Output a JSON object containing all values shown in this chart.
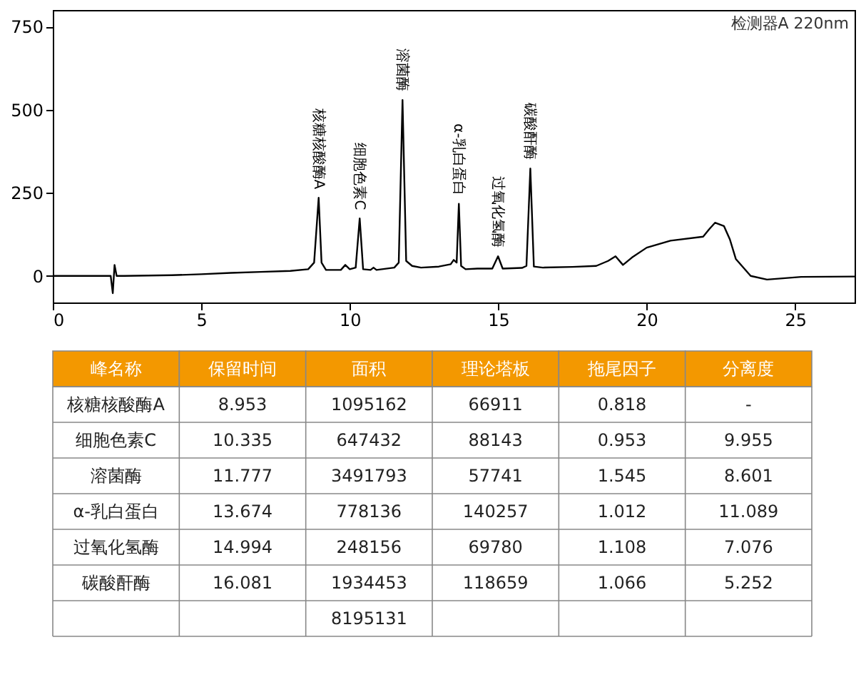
{
  "chart_data": [
    {
      "type": "line",
      "color": "#000000",
      "xlim": [
        0,
        27
      ],
      "ylim": [
        -80,
        800
      ],
      "xticks": [
        0,
        5,
        10,
        15,
        20,
        25
      ],
      "yticks": [
        0,
        250,
        500,
        750
      ],
      "grid": false,
      "x": [
        0,
        1.5,
        1.95,
        2.02,
        2.08,
        2.15,
        2.4,
        4,
        5,
        6,
        7,
        8,
        8.6,
        8.8,
        8.953,
        9.05,
        9.2,
        9.7,
        9.85,
        10.0,
        10.2,
        10.335,
        10.45,
        10.7,
        10.8,
        10.9,
        11.5,
        11.65,
        11.777,
        11.9,
        12.1,
        12.4,
        13.0,
        13.4,
        13.5,
        13.6,
        13.674,
        13.75,
        13.9,
        14.3,
        14.8,
        14.994,
        15.15,
        15.8,
        15.95,
        16.081,
        16.2,
        16.5,
        17.5,
        18.3,
        18.7,
        18.95,
        19.2,
        19.5,
        20.0,
        20.8,
        21.9,
        22.1,
        22.3,
        22.6,
        22.8,
        23.0,
        23.5,
        24.05,
        25.2,
        27
      ],
      "values": [
        0,
        0,
        0,
        -52,
        33,
        0,
        0,
        2,
        5,
        9,
        12,
        15,
        20,
        40,
        235,
        40,
        18,
        18,
        33,
        20,
        25,
        173,
        20,
        18,
        25,
        18,
        25,
        40,
        529,
        45,
        30,
        25,
        28,
        35,
        48,
        40,
        217,
        30,
        20,
        22,
        22,
        59,
        22,
        24,
        30,
        323,
        28,
        25,
        27,
        30,
        45,
        59,
        33,
        55,
        85,
        106,
        118,
        140,
        160,
        150,
        110,
        51,
        0,
        -11,
        -3,
        -2
      ],
      "annotations": [
        {
          "text": "核糖核酸酶A",
          "x": 8.953,
          "y": 235
        },
        {
          "text": "细胞色素C",
          "x": 10.335,
          "y": 173
        },
        {
          "text": "溶菌酶",
          "x": 11.777,
          "y": 529
        },
        {
          "text": "α-乳白蛋白",
          "x": 13.674,
          "y": 217
        },
        {
          "text": "过氧化氢酶",
          "x": 14.994,
          "y": 59
        },
        {
          "text": "碳酸酐酶",
          "x": 16.081,
          "y": 323
        },
        "检测器A 220nm"
      ]
    },
    {
      "type": "other",
      "color": "#f39800",
      "categories": [
        "峰名称",
        "保留时间",
        "面积",
        "理论塔板",
        "拖尾因子",
        "分离度"
      ],
      "y_categories": [
        "核糖核酸酶A",
        "细胞色素C",
        "溶菌酶",
        "α-乳白蛋白",
        "过氧化氢酶",
        "碳酸酐酶",
        null
      ],
      "cell_labels": [
        [
          "8.953",
          "1095162",
          "66911",
          "0.818",
          "-"
        ],
        [
          "10.335",
          "647432",
          "88143",
          "0.953",
          "9.955"
        ],
        [
          "11.777",
          "3491793",
          "57741",
          "1.545",
          "8.601"
        ],
        [
          "13.674",
          "778136",
          "140257",
          "1.012",
          "11.089"
        ],
        [
          "14.994",
          "248156",
          "69780",
          "1.108",
          "7.076"
        ],
        [
          "16.081",
          "1934453",
          "118659",
          "1.066",
          "5.252"
        ],
        [
          null,
          "8195131",
          null,
          null,
          null
        ]
      ]
    }
  ]
}
